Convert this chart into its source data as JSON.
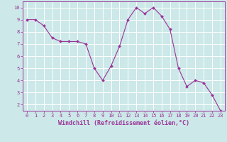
{
  "x": [
    0,
    1,
    2,
    3,
    4,
    5,
    6,
    7,
    8,
    9,
    10,
    11,
    12,
    13,
    14,
    15,
    16,
    17,
    18,
    19,
    20,
    21,
    22,
    23
  ],
  "y": [
    9.0,
    9.0,
    8.5,
    7.5,
    7.2,
    7.2,
    7.2,
    7.0,
    5.0,
    4.0,
    5.2,
    6.8,
    9.0,
    10.0,
    9.5,
    10.0,
    9.3,
    8.2,
    5.0,
    3.5,
    4.0,
    3.8,
    2.8,
    1.5
  ],
  "line_color": "#993399",
  "marker_color": "#993399",
  "bg_color": "#cce8e8",
  "grid_color": "#ffffff",
  "xlabel": "Windchill (Refroidissement éolien,°C)",
  "xlabel_color": "#993399",
  "tick_color": "#993399",
  "spine_color": "#993399",
  "ylim": [
    1.5,
    10.5
  ],
  "xlim": [
    -0.5,
    23.5
  ],
  "yticks": [
    2,
    3,
    4,
    5,
    6,
    7,
    8,
    9,
    10
  ],
  "xticks": [
    0,
    1,
    2,
    3,
    4,
    5,
    6,
    7,
    8,
    9,
    10,
    11,
    12,
    13,
    14,
    15,
    16,
    17,
    18,
    19,
    20,
    21,
    22,
    23
  ],
  "tick_fontsize": 5.0,
  "xlabel_fontsize": 6.0,
  "line_width": 0.8,
  "marker_size": 2.0
}
